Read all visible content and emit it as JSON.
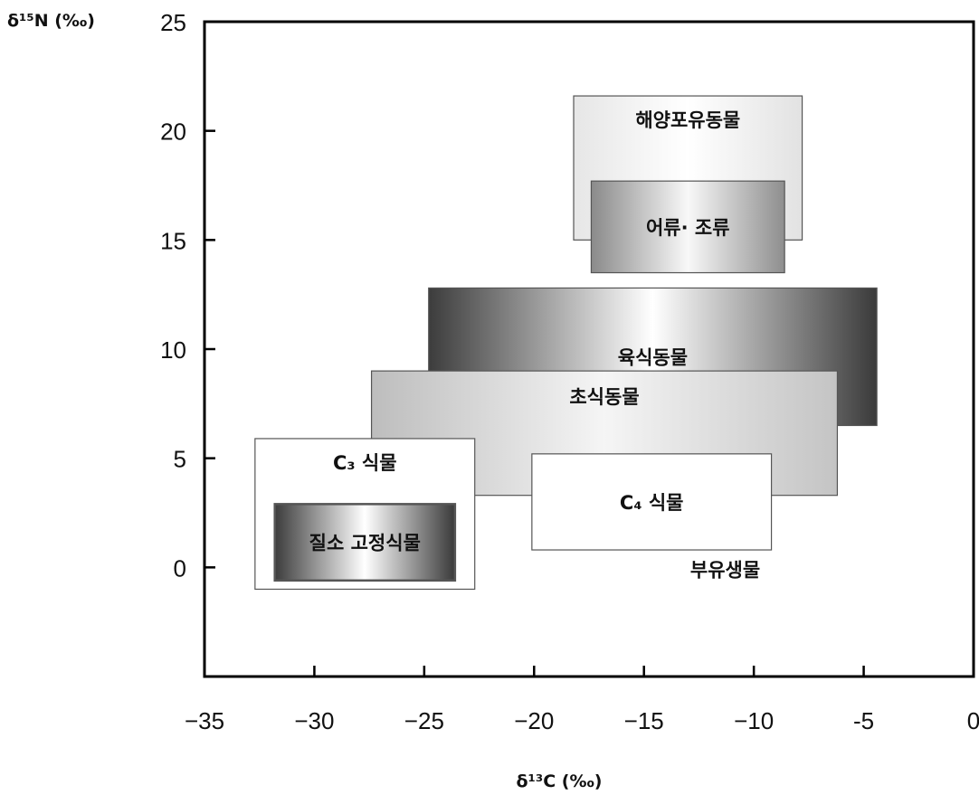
{
  "chart_data": {
    "type": "range-box",
    "xlabel": "δ¹³C (‰)",
    "ylabel": "δ¹⁵N (‰)",
    "xlim": [
      -35,
      0
    ],
    "ylim": [
      -5,
      25
    ],
    "x_ticks": [
      -35,
      -30,
      -25,
      -20,
      -15,
      -10,
      -5,
      0
    ],
    "x_tick_labels": [
      "−35",
      "−30",
      "−25",
      "−20",
      "−15",
      "−10",
      "-5",
      "0"
    ],
    "y_ticks": [
      0,
      5,
      10,
      15,
      20,
      25
    ],
    "y_tick_labels": [
      "0",
      "5",
      "10",
      "15",
      "20",
      "25"
    ],
    "grid": false,
    "groups": [
      {
        "name": "해양포유동물",
        "x": [
          -18.2,
          -7.8
        ],
        "y": [
          15.0,
          21.6
        ],
        "fill": "light-gradient"
      },
      {
        "name": "어류· 조류",
        "x": [
          -17.4,
          -8.6
        ],
        "y": [
          13.5,
          17.7
        ],
        "fill": "silver-gradient"
      },
      {
        "name": "육식동물",
        "x": [
          -24.8,
          -4.4
        ],
        "y": [
          6.5,
          12.8
        ],
        "fill": "dark-edges-gradient"
      },
      {
        "name": "초식동물",
        "x": [
          -27.4,
          -6.2
        ],
        "y": [
          3.3,
          9.0
        ],
        "fill": "light-gray-gradient"
      },
      {
        "name": "C₃ 식물",
        "x": [
          -32.7,
          -22.7
        ],
        "y": [
          -1.0,
          5.9
        ],
        "fill": "white"
      },
      {
        "name": "질소 고정식물",
        "x": [
          -31.8,
          -23.6
        ],
        "y": [
          -0.6,
          2.9
        ],
        "fill": "dark-edges-gradient"
      },
      {
        "name": "C₄ 식물",
        "x": [
          -20.1,
          -9.2
        ],
        "y": [
          0.8,
          5.2
        ],
        "fill": "white"
      }
    ],
    "annotations": [
      {
        "text": "부유생물",
        "x": -11.3,
        "y": 0.0
      }
    ]
  }
}
